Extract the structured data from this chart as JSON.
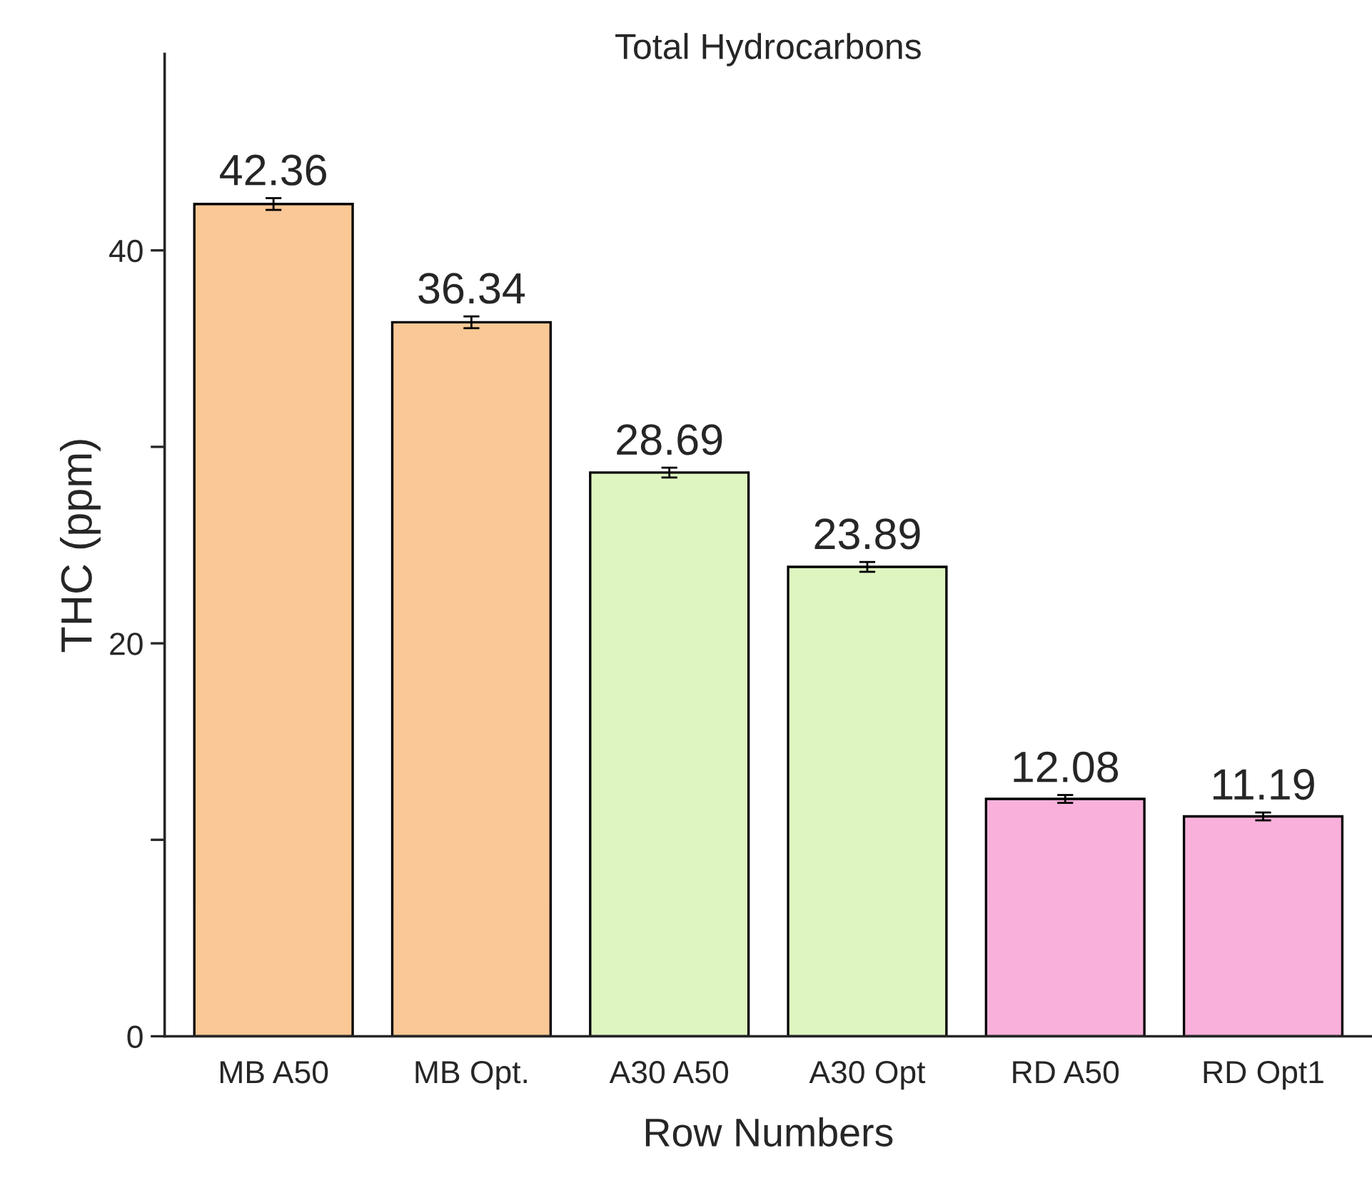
{
  "chart_data": {
    "type": "bar",
    "title": "Total Hydrocarbons",
    "xlabel": "Row Numbers",
    "ylabel": "THC (ppm)",
    "categories": [
      "MB A50",
      "MB Opt.",
      "A30 A50",
      "A30 Opt",
      "RD A50",
      "RD Opt1"
    ],
    "values": [
      42.36,
      36.34,
      28.69,
      23.89,
      12.08,
      11.19
    ],
    "errors": [
      0.3,
      0.3,
      0.25,
      0.25,
      0.2,
      0.2
    ],
    "colors": [
      "#fac896",
      "#fac896",
      "#dff5c0",
      "#dff5c0",
      "#f9b1dc",
      "#f9b1dc"
    ],
    "ylim": [
      0,
      50
    ],
    "yticks": [
      0,
      {
        "value": 10,
        "label": null
      },
      20,
      {
        "value": 30,
        "label": null
      },
      40
    ],
    "data_labels": true,
    "grid": false,
    "legend": false
  }
}
